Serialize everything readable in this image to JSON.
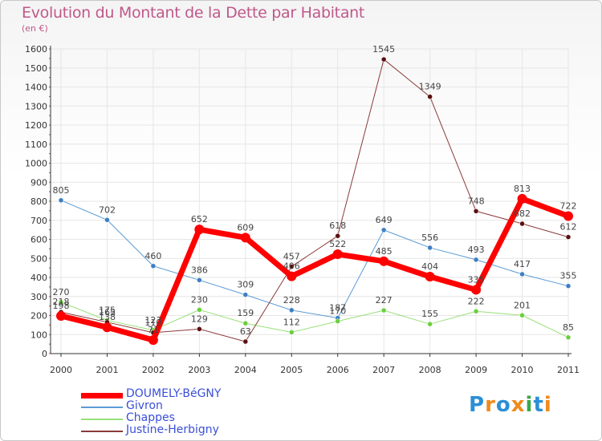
{
  "chart_data": {
    "type": "line",
    "title": "Evolution du Montant de la Dette par Habitant",
    "subtitle": "(en €)",
    "x": [
      "2000",
      "2001",
      "2002",
      "2003",
      "2004",
      "2005",
      "2006",
      "2007",
      "2008",
      "2009",
      "2010",
      "2011"
    ],
    "ylim": [
      0,
      1600
    ],
    "yticks": [
      0,
      100,
      200,
      300,
      400,
      500,
      600,
      700,
      800,
      900,
      1000,
      1100,
      1200,
      1300,
      1400,
      1500,
      1600
    ],
    "grid": true,
    "legend_position": "bottom-left",
    "series": [
      {
        "name": "DOUMELY-BéGNY",
        "color": "#ff0000",
        "marker_color": "#ff0000",
        "width": 7,
        "radius": 6,
        "values": [
          198,
          138,
          71,
          652,
          609,
          406,
          522,
          485,
          404,
          335,
          813,
          722
        ]
      },
      {
        "name": "Givron",
        "color": "#5b9bd5",
        "marker_color": "#3d7fc4",
        "width": 1,
        "radius": 3,
        "values": [
          805,
          702,
          460,
          386,
          309,
          228,
          187,
          649,
          556,
          493,
          417,
          355
        ]
      },
      {
        "name": "Chappes",
        "color": "#99e07a",
        "marker_color": "#6ccf3e",
        "width": 1,
        "radius": 3,
        "values": [
          270,
          175,
          123,
          230,
          159,
          112,
          170,
          227,
          155,
          222,
          201,
          85
        ]
      },
      {
        "name": "Justine-Herbigny",
        "color": "#8b3a3a",
        "marker_color": "#5a1010",
        "width": 1,
        "radius": 3,
        "values": [
          218,
          165,
          110,
          129,
          63,
          457,
          618,
          1545,
          1349,
          748,
          682,
          612
        ]
      }
    ]
  },
  "branding": {
    "logo_text": "Proxiti"
  }
}
